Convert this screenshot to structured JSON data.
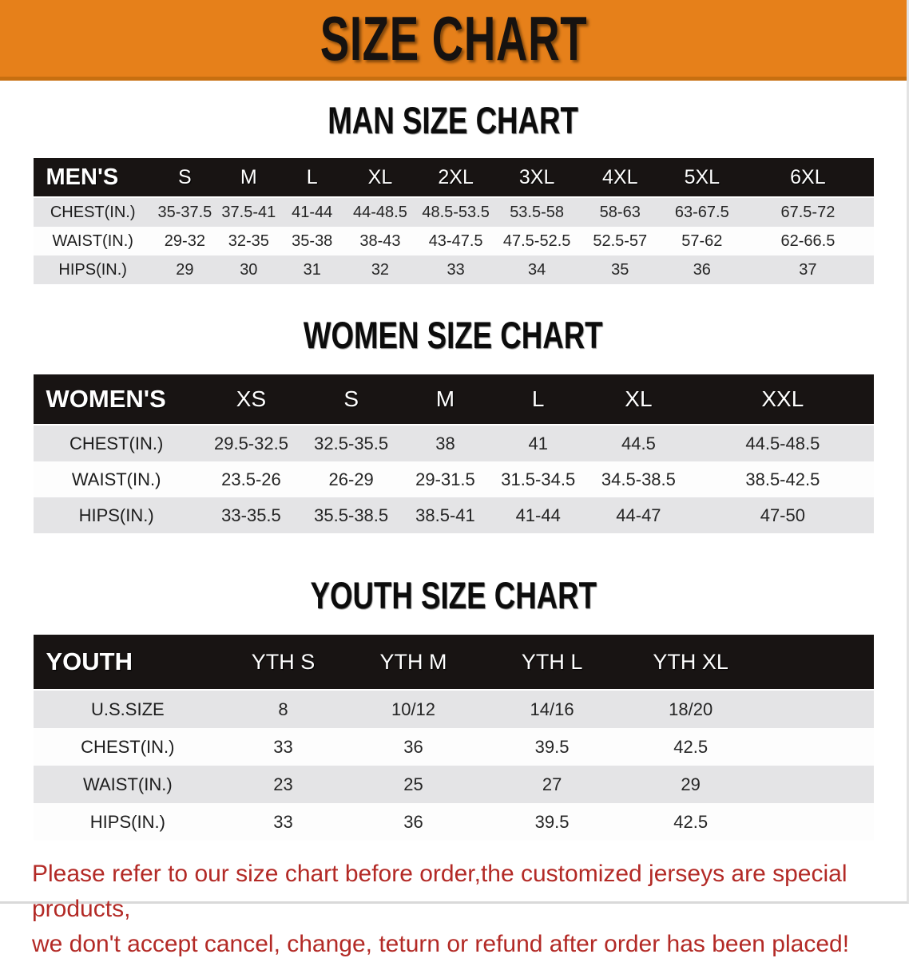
{
  "banner": {
    "title": "SIZE CHART"
  },
  "sections": [
    {
      "id": "men",
      "heading": "MAN SIZE CHART",
      "header_label": "MEN'S",
      "columns": [
        "S",
        "M",
        "L",
        "XL",
        "2XL",
        "3XL",
        "4XL",
        "5XL",
        "6XL"
      ],
      "rows": [
        {
          "label": "CHEST(IN.)",
          "values": [
            "35-37.5",
            "37.5-41",
            "41-44",
            "44-48.5",
            "48.5-53.5",
            "53.5-58",
            "58-63",
            "63-67.5",
            "67.5-72"
          ]
        },
        {
          "label": "WAIST(IN.)",
          "values": [
            "29-32",
            "32-35",
            "35-38",
            "38-43",
            "43-47.5",
            "47.5-52.5",
            "52.5-57",
            "57-62",
            "62-66.5"
          ]
        },
        {
          "label": "HIPS(IN.)",
          "values": [
            "29",
            "30",
            "31",
            "32",
            "33",
            "34",
            "35",
            "36",
            "37"
          ]
        }
      ]
    },
    {
      "id": "women",
      "heading": "WOMEN SIZE CHART",
      "header_label": "WOMEN'S",
      "columns": [
        "XS",
        "S",
        "M",
        "L",
        "XL",
        "XXL"
      ],
      "rows": [
        {
          "label": "CHEST(IN.)",
          "values": [
            "29.5-32.5",
            "32.5-35.5",
            "38",
            "41",
            "44.5",
            "44.5-48.5"
          ]
        },
        {
          "label": "WAIST(IN.)",
          "values": [
            "23.5-26",
            "26-29",
            "29-31.5",
            "31.5-34.5",
            "34.5-38.5",
            "38.5-42.5"
          ]
        },
        {
          "label": "HIPS(IN.)",
          "values": [
            "33-35.5",
            "35.5-38.5",
            "38.5-41",
            "41-44",
            "44-47",
            "47-50"
          ]
        }
      ]
    },
    {
      "id": "youth",
      "heading": "YOUTH SIZE CHART",
      "header_label": "YOUTH",
      "columns": [
        "YTH S",
        "YTH M",
        "YTH L",
        "YTH XL"
      ],
      "rows": [
        {
          "label": "U.S.SIZE",
          "values": [
            "8",
            "10/12",
            "14/16",
            "18/20"
          ]
        },
        {
          "label": "CHEST(IN.)",
          "values": [
            "33",
            "36",
            "39.5",
            "42.5"
          ]
        },
        {
          "label": "WAIST(IN.)",
          "values": [
            "23",
            "25",
            "27",
            "29"
          ]
        },
        {
          "label": "HIPS(IN.)",
          "values": [
            "33",
            "36",
            "39.5",
            "42.5"
          ]
        }
      ]
    }
  ],
  "disclaimer": {
    "line1": "Please refer to our size chart before order,the customized jerseys are special products,",
    "line2": "we don't accept cancel, change, teturn or refund after order has been placed!"
  },
  "colors": {
    "banner_bg": "#E6801A",
    "banner_border": "#C76F10",
    "table_header_bg": "#181413",
    "stripe_row_bg": "#E4E4E6",
    "disclaimer_text": "#B32A26",
    "title_text": "#161210"
  }
}
